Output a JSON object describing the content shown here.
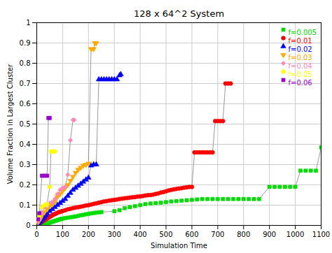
{
  "chart_data": {
    "type": "line",
    "title": "128 x 64^2 System",
    "xlabel": "Simulation Time",
    "ylabel": "Volume Fraction in Largest Cluster",
    "xlim": [
      0,
      1100
    ],
    "ylim": [
      0,
      1.0
    ],
    "xticks": [
      0,
      100,
      200,
      300,
      400,
      500,
      600,
      700,
      800,
      900,
      1000,
      1100
    ],
    "yticks": [
      0.0,
      0.1,
      0.2,
      0.3,
      0.4,
      0.5,
      0.6,
      0.7,
      0.8,
      0.9,
      1.0
    ],
    "grid": true,
    "legend": "upper right",
    "series": [
      {
        "name": "f=0.005",
        "color": "#00dd00",
        "marker": "square",
        "x": [
          5,
          10,
          15,
          20,
          25,
          30,
          35,
          40,
          45,
          50,
          55,
          60,
          65,
          70,
          75,
          80,
          85,
          90,
          95,
          100,
          110,
          120,
          130,
          140,
          150,
          160,
          170,
          180,
          190,
          200,
          210,
          220,
          230,
          240,
          250,
          300,
          320,
          340,
          360,
          380,
          400,
          420,
          440,
          460,
          480,
          500,
          520,
          540,
          560,
          580,
          600,
          620,
          640,
          660,
          680,
          700,
          720,
          740,
          760,
          780,
          800,
          820,
          840,
          860,
          900,
          920,
          940,
          960,
          980,
          1000,
          1020,
          1040,
          1060,
          1080,
          1100
        ],
        "values": [
          0.003,
          0.005,
          0.006,
          0.007,
          0.008,
          0.009,
          0.01,
          0.011,
          0.012,
          0.014,
          0.016,
          0.018,
          0.02,
          0.022,
          0.024,
          0.026,
          0.028,
          0.03,
          0.032,
          0.034,
          0.036,
          0.038,
          0.04,
          0.042,
          0.044,
          0.047,
          0.05,
          0.052,
          0.055,
          0.057,
          0.059,
          0.061,
          0.063,
          0.064,
          0.066,
          0.07,
          0.075,
          0.085,
          0.09,
          0.095,
          0.1,
          0.105,
          0.108,
          0.11,
          0.112,
          0.115,
          0.118,
          0.12,
          0.122,
          0.124,
          0.126,
          0.128,
          0.13,
          0.13,
          0.13,
          0.13,
          0.13,
          0.13,
          0.13,
          0.13,
          0.13,
          0.13,
          0.13,
          0.13,
          0.19,
          0.19,
          0.19,
          0.19,
          0.19,
          0.19,
          0.27,
          0.27,
          0.27,
          0.27,
          0.385
        ]
      },
      {
        "name": "f=0.01",
        "color": "#ff0000",
        "marker": "circle",
        "x": [
          5,
          10,
          15,
          20,
          25,
          30,
          35,
          40,
          45,
          50,
          55,
          60,
          65,
          70,
          75,
          80,
          85,
          90,
          95,
          100,
          110,
          120,
          130,
          140,
          150,
          160,
          170,
          180,
          190,
          200,
          210,
          220,
          230,
          240,
          250,
          260,
          270,
          280,
          290,
          300,
          310,
          320,
          330,
          340,
          350,
          360,
          370,
          380,
          390,
          400,
          410,
          420,
          430,
          440,
          450,
          460,
          470,
          480,
          490,
          500,
          510,
          520,
          530,
          540,
          550,
          560,
          570,
          580,
          590,
          600,
          610,
          620,
          630,
          640,
          650,
          660,
          670,
          680,
          690,
          700,
          710,
          720,
          730,
          740,
          750
        ],
        "values": [
          0.006,
          0.01,
          0.014,
          0.018,
          0.022,
          0.026,
          0.03,
          0.034,
          0.038,
          0.042,
          0.046,
          0.05,
          0.053,
          0.056,
          0.059,
          0.062,
          0.065,
          0.067,
          0.069,
          0.071,
          0.075,
          0.079,
          0.082,
          0.085,
          0.088,
          0.09,
          0.092,
          0.095,
          0.098,
          0.1,
          0.103,
          0.106,
          0.109,
          0.112,
          0.115,
          0.118,
          0.12,
          0.122,
          0.124,
          0.126,
          0.128,
          0.13,
          0.132,
          0.134,
          0.135,
          0.137,
          0.139,
          0.14,
          0.142,
          0.143,
          0.145,
          0.147,
          0.149,
          0.15,
          0.152,
          0.155,
          0.158,
          0.162,
          0.165,
          0.168,
          0.172,
          0.175,
          0.178,
          0.18,
          0.182,
          0.184,
          0.186,
          0.188,
          0.19,
          0.19,
          0.36,
          0.36,
          0.36,
          0.36,
          0.36,
          0.36,
          0.36,
          0.36,
          0.515,
          0.515,
          0.515,
          0.515,
          0.7,
          0.7,
          0.7
        ]
      },
      {
        "name": "f=0.02",
        "color": "#0000ff",
        "marker": "triangle-up",
        "x": [
          5,
          10,
          15,
          20,
          25,
          30,
          35,
          40,
          50,
          60,
          70,
          80,
          90,
          100,
          110,
          120,
          130,
          140,
          150,
          160,
          170,
          180,
          190,
          200,
          210,
          220,
          230,
          240,
          250,
          260,
          270,
          280,
          290,
          300,
          310,
          320,
          325
        ],
        "values": [
          0.01,
          0.015,
          0.02,
          0.028,
          0.035,
          0.042,
          0.05,
          0.058,
          0.07,
          0.08,
          0.09,
          0.1,
          0.11,
          0.12,
          0.13,
          0.145,
          0.16,
          0.175,
          0.185,
          0.195,
          0.205,
          0.215,
          0.225,
          0.235,
          0.295,
          0.3,
          0.3,
          0.72,
          0.72,
          0.72,
          0.72,
          0.72,
          0.72,
          0.72,
          0.72,
          0.74,
          0.745
        ]
      },
      {
        "name": "f=0.03",
        "color": "#ffaa00",
        "marker": "triangle-down",
        "x": [
          5,
          10,
          15,
          20,
          30,
          40,
          50,
          60,
          70,
          80,
          90,
          100,
          110,
          120,
          130,
          140,
          150,
          160,
          170,
          180,
          190,
          200,
          210,
          220,
          225,
          230
        ],
        "values": [
          0.015,
          0.025,
          0.035,
          0.05,
          0.065,
          0.08,
          0.095,
          0.105,
          0.115,
          0.14,
          0.155,
          0.17,
          0.185,
          0.2,
          0.22,
          0.24,
          0.26,
          0.275,
          0.285,
          0.295,
          0.3,
          0.305,
          0.87,
          0.87,
          0.9,
          0.9
        ]
      },
      {
        "name": "f=0.04",
        "color": "#ff88bb",
        "marker": "diamond",
        "x": [
          5,
          10,
          20,
          30,
          40,
          50,
          60,
          70,
          80,
          90,
          100,
          110,
          120,
          130,
          140,
          145
        ],
        "values": [
          0.02,
          0.03,
          0.06,
          0.09,
          0.105,
          0.11,
          0.115,
          0.13,
          0.155,
          0.175,
          0.185,
          0.19,
          0.25,
          0.42,
          0.52,
          0.52
        ]
      },
      {
        "name": "f=0.05",
        "color": "#ffff00",
        "marker": "circle",
        "x": [
          5,
          10,
          20,
          30,
          40,
          50,
          55,
          60,
          65,
          70
        ],
        "values": [
          0.03,
          0.05,
          0.09,
          0.1,
          0.105,
          0.19,
          0.365,
          0.365,
          0.365,
          0.365
        ]
      },
      {
        "name": "f=0.06",
        "color": "#9900cc",
        "marker": "square",
        "x": [
          5,
          10,
          20,
          30,
          40,
          45,
          50
        ],
        "values": [
          0.03,
          0.06,
          0.245,
          0.245,
          0.245,
          0.53,
          0.53
        ]
      }
    ]
  }
}
